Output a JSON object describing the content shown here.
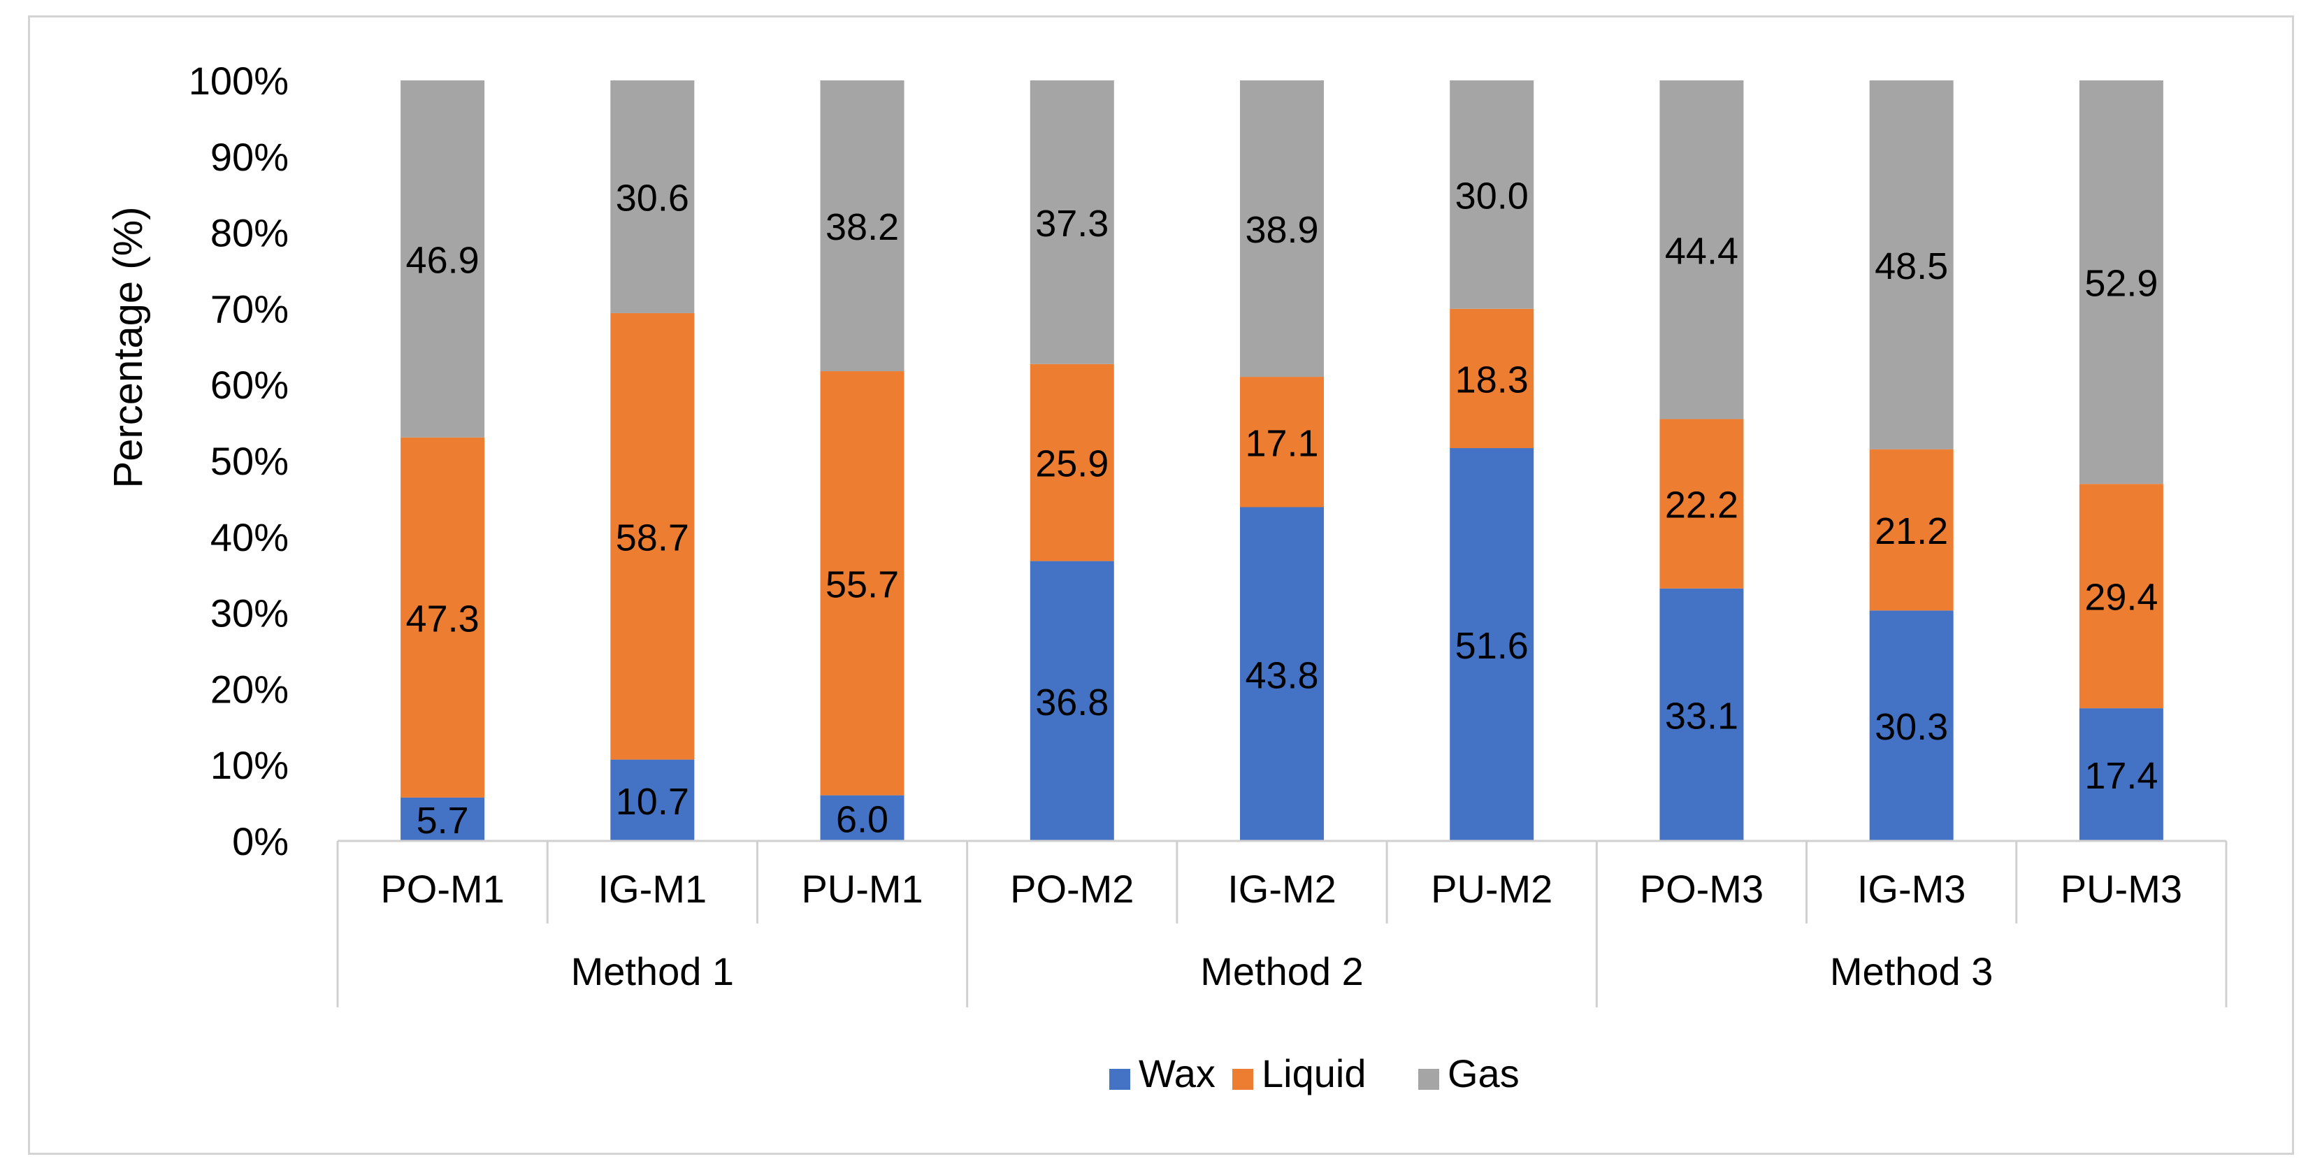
{
  "chart_data": {
    "type": "bar",
    "stacked": true,
    "percent_stacked": true,
    "title": "",
    "xlabel": "",
    "ylabel": "Percentage (%)",
    "ylim": [
      0,
      100
    ],
    "yticks": [
      "0%",
      "10%",
      "20%",
      "30%",
      "40%",
      "50%",
      "60%",
      "70%",
      "80%",
      "90%",
      "100%"
    ],
    "grid": false,
    "legend_position": "bottom",
    "categories": [
      "PO-M1",
      "IG-M1",
      "PU-M1",
      "PO-M2",
      "IG-M2",
      "PU-M2",
      "PO-M3",
      "IG-M3",
      "PU-M3"
    ],
    "groups": [
      {
        "name": "Method 1",
        "categories": [
          "PO-M1",
          "IG-M1",
          "PU-M1"
        ]
      },
      {
        "name": "Method 2",
        "categories": [
          "PO-M2",
          "IG-M2",
          "PU-M2"
        ]
      },
      {
        "name": "Method 3",
        "categories": [
          "PO-M3",
          "IG-M3",
          "PU-M3"
        ]
      }
    ],
    "series": [
      {
        "name": "Wax",
        "color": "#4472c4",
        "values": [
          5.7,
          10.7,
          6.0,
          36.8,
          43.8,
          51.6,
          33.1,
          30.3,
          17.4
        ],
        "labels": [
          "5.7",
          "10.7",
          "6.0",
          "36.8",
          "43.8",
          "51.6",
          "33.1",
          "30.3",
          "17.4"
        ]
      },
      {
        "name": "Liquid",
        "color": "#ed7d31",
        "values": [
          47.3,
          58.7,
          55.7,
          25.9,
          17.1,
          18.3,
          22.2,
          21.2,
          29.4
        ],
        "labels": [
          "47.3",
          "58.7",
          "55.7",
          "25.9",
          "17.1",
          "18.3",
          "22.2",
          "21.2",
          "29.4"
        ]
      },
      {
        "name": "Gas",
        "color": "#a5a5a5",
        "values": [
          46.9,
          30.6,
          38.2,
          37.3,
          38.9,
          30.0,
          44.4,
          48.5,
          52.9
        ],
        "labels": [
          "46.9",
          "30.6",
          "38.2",
          "37.3",
          "38.9",
          "30.0",
          "44.4",
          "48.5",
          "52.9"
        ]
      }
    ]
  }
}
